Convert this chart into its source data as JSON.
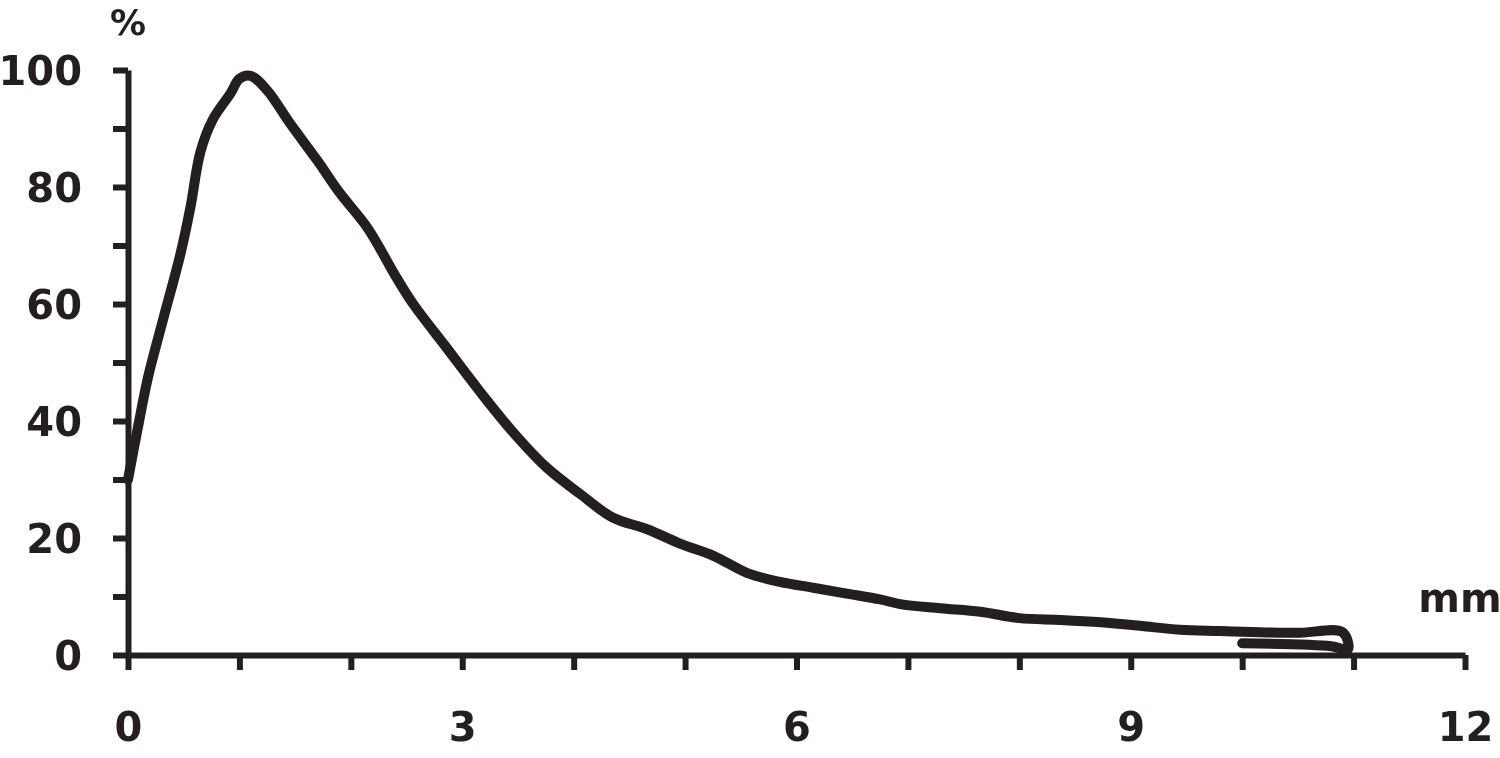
{
  "chart_data": {
    "type": "line",
    "xlabel": "mm",
    "ylabel": "%",
    "x": [
      0,
      0.1,
      0.18,
      0.31,
      0.47,
      0.56,
      0.65,
      0.76,
      0.92,
      1.0,
      1.1,
      1.25,
      1.45,
      1.7,
      1.9,
      2.15,
      2.41,
      2.56,
      2.86,
      3.16,
      3.46,
      3.76,
      4.06,
      4.35,
      4.66,
      4.96,
      5.25,
      5.56,
      5.85,
      6.15,
      6.45,
      6.75,
      6.93,
      7.29,
      7.65,
      8.0,
      8.37,
      8.73,
      9.08,
      9.44,
      9.8,
      10.16,
      10.52,
      10.9,
      10.95,
      10.8,
      10
    ],
    "values": [
      30,
      40,
      47.5,
      57,
      68.5,
      76.5,
      86,
      91.5,
      96,
      98.5,
      99,
      96.5,
      91,
      84.5,
      79,
      73,
      64.5,
      60,
      52.5,
      45,
      38,
      32,
      27.5,
      23.5,
      21.5,
      19,
      17,
      14,
      12.5,
      11.5,
      10.5,
      9.5,
      8.7,
      8,
      7.4,
      6.3,
      6,
      5.6,
      5,
      4.3,
      4.1,
      3.9,
      3.8,
      3.9,
      1,
      1.5,
      2
    ],
    "color": "#231f20",
    "xlim": [
      0,
      12
    ],
    "ylim": [
      0,
      100
    ],
    "xticks": [
      0,
      {
        "value": 1,
        "label": null
      },
      {
        "value": 2,
        "label": null
      },
      3,
      {
        "value": 4,
        "label": null
      },
      {
        "value": 5,
        "label": null
      },
      6,
      {
        "value": 7,
        "label": null
      },
      {
        "value": 8,
        "label": null
      },
      9,
      {
        "value": 10,
        "label": null
      },
      {
        "value": 11,
        "label": null
      },
      12
    ],
    "yticks": [
      0,
      {
        "value": 10,
        "label": null
      },
      20,
      {
        "value": 30,
        "label": null
      },
      40,
      {
        "value": 50,
        "label": null
      },
      60,
      {
        "value": 70,
        "label": null
      },
      80,
      {
        "value": 90,
        "label": null
      },
      100
    ]
  }
}
